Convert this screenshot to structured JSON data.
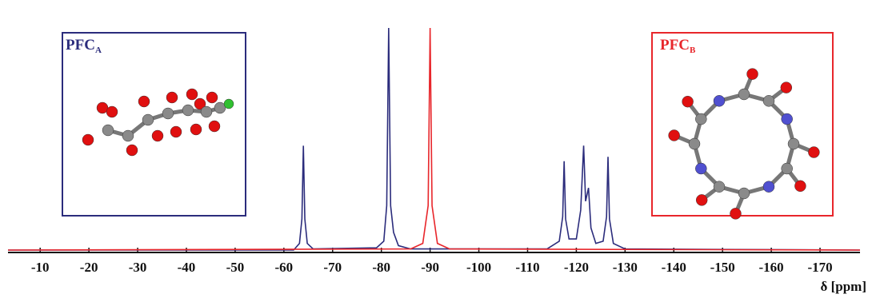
{
  "chart_data": {
    "type": "line",
    "xlabel": "δ [ppm]",
    "xlim": [
      -3.4,
      -178.2
    ],
    "ylim": [
      0,
      100
    ],
    "xticks": [
      -10,
      -20,
      -30,
      -40,
      -50,
      -60,
      -70,
      -80,
      -90,
      -100,
      -110,
      -120,
      -130,
      -140,
      -150,
      -160,
      -170
    ],
    "series": [
      {
        "name": "PFC",
        "subscript": "A",
        "color": "#2b2c7c",
        "x": [
          -3.4,
          -62,
          -63.2,
          -63.7,
          -64,
          -64.3,
          -64.8,
          -66,
          -79,
          -80.5,
          -81.1,
          -81.5,
          -81.9,
          -82.5,
          -83.5,
          -86,
          -114,
          -116.5,
          -117.2,
          -117.5,
          -117.8,
          -118.5,
          -120,
          -120.9,
          -121.5,
          -121.9,
          -122.5,
          -123,
          -124,
          -125.5,
          -126.2,
          -126.5,
          -126.8,
          -127.6,
          -130,
          -178.2
        ],
        "values": [
          0,
          0,
          3,
          14,
          47,
          14,
          3,
          0.5,
          1,
          4,
          20,
          100,
          20,
          8,
          2,
          0.5,
          0.5,
          4,
          15,
          40,
          14,
          5,
          5,
          18,
          47,
          22,
          28,
          10,
          3,
          4,
          15,
          42,
          14,
          3,
          0.5,
          0
        ]
      },
      {
        "name": "PFC",
        "subscript": "B",
        "color": "#e8262b",
        "x": [
          -3.4,
          -86,
          -88.5,
          -89.6,
          -90,
          -90.4,
          -91.5,
          -94,
          -178.2
        ],
        "values": [
          0,
          0.5,
          3,
          20,
          100,
          20,
          3,
          0.5,
          0
        ]
      }
    ]
  }
}
